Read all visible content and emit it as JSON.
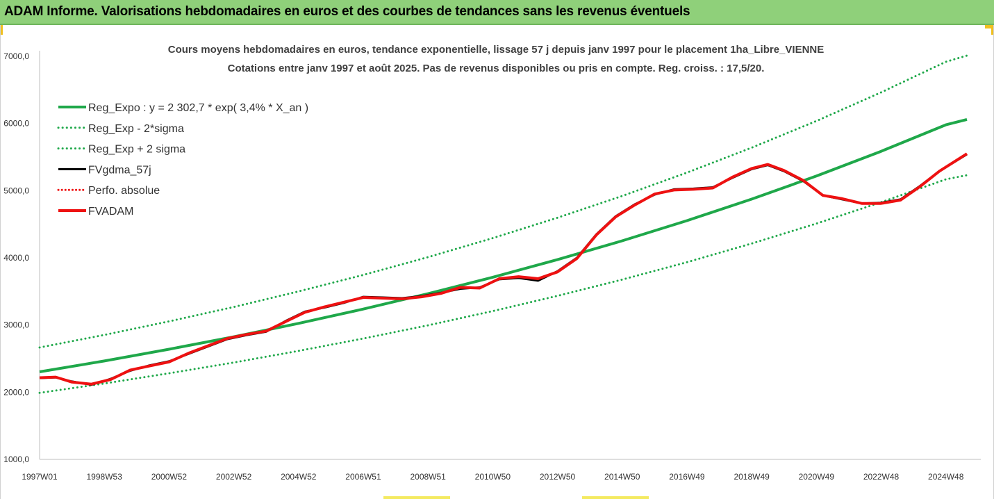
{
  "header": {
    "title": "ADAM Informe. Valorisations hebdomadaires en euros et des courbes de tendances sans les revenus éventuels"
  },
  "colors": {
    "header_bg": "#8fd07a",
    "trend": "#1fa84a",
    "fvadam": "#ee1111",
    "fvgdma": "#000000",
    "perfo": "#ee1111"
  },
  "chart_data": {
    "type": "line",
    "title_lines": [
      "Cours moyens hebdomadaires en euros, tendance exponentielle, lissage 57 j depuis janv 1997 pour le placement 1ha_Libre_VIENNE",
      "Cotations entre janv 1997 et août 2025. Pas de revenus disponibles ou pris en compte. Reg. croiss. : 17,5/20."
    ],
    "xlabel": "",
    "ylabel": "",
    "x_ticks": [
      {
        "label": "1997W01",
        "year": 1997.0
      },
      {
        "label": "1998W53",
        "year": 1999.0
      },
      {
        "label": "2000W52",
        "year": 2001.0
      },
      {
        "label": "2002W52",
        "year": 2003.0
      },
      {
        "label": "2004W52",
        "year": 2005.0
      },
      {
        "label": "2006W51",
        "year": 2007.0
      },
      {
        "label": "2008W51",
        "year": 2009.0
      },
      {
        "label": "2010W50",
        "year": 2011.0
      },
      {
        "label": "2012W50",
        "year": 2013.0
      },
      {
        "label": "2014W50",
        "year": 2015.0
      },
      {
        "label": "2016W49",
        "year": 2017.0
      },
      {
        "label": "2018W49",
        "year": 2019.0
      },
      {
        "label": "2020W49",
        "year": 2021.0
      },
      {
        "label": "2022W48",
        "year": 2023.0
      },
      {
        "label": "2024W48",
        "year": 2025.0
      }
    ],
    "xlim": [
      1997.0,
      2025.65
    ],
    "y_ticks": [
      "1000,0",
      "2000,0",
      "3000,0",
      "4000,0",
      "5000,0",
      "6000,0",
      "7000,0"
    ],
    "y_tick_values": [
      1000,
      2000,
      3000,
      4000,
      5000,
      6000,
      7000
    ],
    "ylim": [
      1000,
      7000
    ],
    "grid": false,
    "legend_position": "top-left",
    "legend": [
      {
        "label": "Reg_Expo : y = 2 302,7 * exp( 3,4% *  X_an )",
        "style": "solid",
        "color": "#1fa84a"
      },
      {
        "label": "Reg_Exp - 2*sigma",
        "style": "dotted",
        "color": "#1fa84a"
      },
      {
        "label": "Reg_Exp + 2 sigma",
        "style": "dotted",
        "color": "#1fa84a"
      },
      {
        "label": "FVgdma_57j",
        "style": "solid",
        "color": "#000000"
      },
      {
        "label": "Perfo. absolue",
        "style": "dotted",
        "color": "#ee1111"
      },
      {
        "label": "FVADAM",
        "style": "solid",
        "color": "#ee1111"
      }
    ],
    "series": [
      {
        "name": "Reg_Expo : y = 2 302,7 * exp( 3,4% *  X_an )",
        "x": [
          1997,
          1999,
          2001,
          2003,
          2005,
          2007,
          2009,
          2011,
          2013,
          2015,
          2017,
          2019,
          2021,
          2023,
          2025,
          2025.65
        ],
        "values": [
          2303,
          2465,
          2640,
          2825,
          3025,
          3238,
          3466,
          3711,
          3973,
          4253,
          4553,
          4874,
          5218,
          5586,
          5980,
          6060
        ]
      },
      {
        "name": "Reg_Exp - 2*sigma",
        "x": [
          1997,
          1999,
          2001,
          2003,
          2005,
          2007,
          2009,
          2011,
          2013,
          2015,
          2017,
          2019,
          2021,
          2023,
          2025,
          2025.65
        ],
        "values": [
          1990,
          2130,
          2282,
          2442,
          2615,
          2799,
          2996,
          3208,
          3434,
          3676,
          3935,
          4213,
          4510,
          4828,
          5169,
          5230
        ]
      },
      {
        "name": "Reg_Exp + 2 sigma",
        "x": [
          1997,
          1999,
          2001,
          2003,
          2005,
          2007,
          2009,
          2011,
          2013,
          2015,
          2017,
          2019,
          2021,
          2023,
          2025,
          2025.65
        ],
        "values": [
          2665,
          2853,
          3054,
          3269,
          3500,
          3746,
          4010,
          4294,
          4597,
          4921,
          5268,
          5640,
          6037,
          6463,
          6918,
          7010
        ]
      },
      {
        "name": "FVgdma_57j",
        "x": [
          1997.0,
          1997.5,
          1998.0,
          1998.6,
          1999.2,
          1999.8,
          2000.4,
          2001.0,
          2001.6,
          2002.2,
          2002.8,
          2003.4,
          2004.0,
          2004.6,
          2005.2,
          2005.8,
          2006.4,
          2007.0,
          2007.6,
          2008.2,
          2008.8,
          2009.4,
          2010.0,
          2010.6,
          2011.2,
          2011.8,
          2012.4,
          2013.0,
          2013.6,
          2014.2,
          2014.8,
          2015.4,
          2016.0,
          2016.6,
          2017.2,
          2017.8,
          2018.4,
          2019.0,
          2019.5,
          2020.0,
          2020.6,
          2021.2,
          2021.8,
          2022.4,
          2023.0,
          2023.6,
          2024.2,
          2024.8,
          2025.65
        ],
        "values": [
          2210,
          2220,
          2160,
          2110,
          2200,
          2320,
          2400,
          2460,
          2570,
          2680,
          2790,
          2850,
          2900,
          3060,
          3200,
          3260,
          3330,
          3420,
          3410,
          3400,
          3430,
          3480,
          3540,
          3560,
          3680,
          3700,
          3660,
          3800,
          4000,
          4350,
          4620,
          4800,
          4940,
          5020,
          5030,
          5050,
          5190,
          5320,
          5380,
          5290,
          5140,
          4930,
          4870,
          4810,
          4820,
          4870,
          5070,
          5290,
          5540
        ]
      },
      {
        "name": "FVADAM",
        "x": [
          1997.0,
          1997.5,
          1998.0,
          1998.6,
          1999.2,
          1999.8,
          2000.4,
          2001.0,
          2001.6,
          2002.2,
          2002.8,
          2003.4,
          2004.0,
          2004.6,
          2005.2,
          2005.8,
          2006.4,
          2007.0,
          2007.6,
          2008.2,
          2008.8,
          2009.4,
          2010.0,
          2010.6,
          2011.2,
          2011.8,
          2012.4,
          2013.0,
          2013.6,
          2014.2,
          2014.8,
          2015.4,
          2016.0,
          2016.6,
          2017.2,
          2017.8,
          2018.4,
          2019.0,
          2019.5,
          2020.0,
          2020.6,
          2021.2,
          2021.8,
          2022.4,
          2023.0,
          2023.6,
          2024.2,
          2024.8,
          2025.65
        ],
        "values": [
          2215,
          2225,
          2150,
          2120,
          2190,
          2330,
          2390,
          2450,
          2580,
          2690,
          2800,
          2860,
          2910,
          3050,
          3190,
          3270,
          3340,
          3410,
          3400,
          3390,
          3420,
          3470,
          3560,
          3550,
          3690,
          3720,
          3690,
          3790,
          3990,
          4340,
          4610,
          4790,
          4950,
          5010,
          5020,
          5040,
          5200,
          5330,
          5390,
          5300,
          5150,
          4930,
          4880,
          4810,
          4810,
          4860,
          5060,
          5290,
          5550
        ]
      }
    ]
  }
}
